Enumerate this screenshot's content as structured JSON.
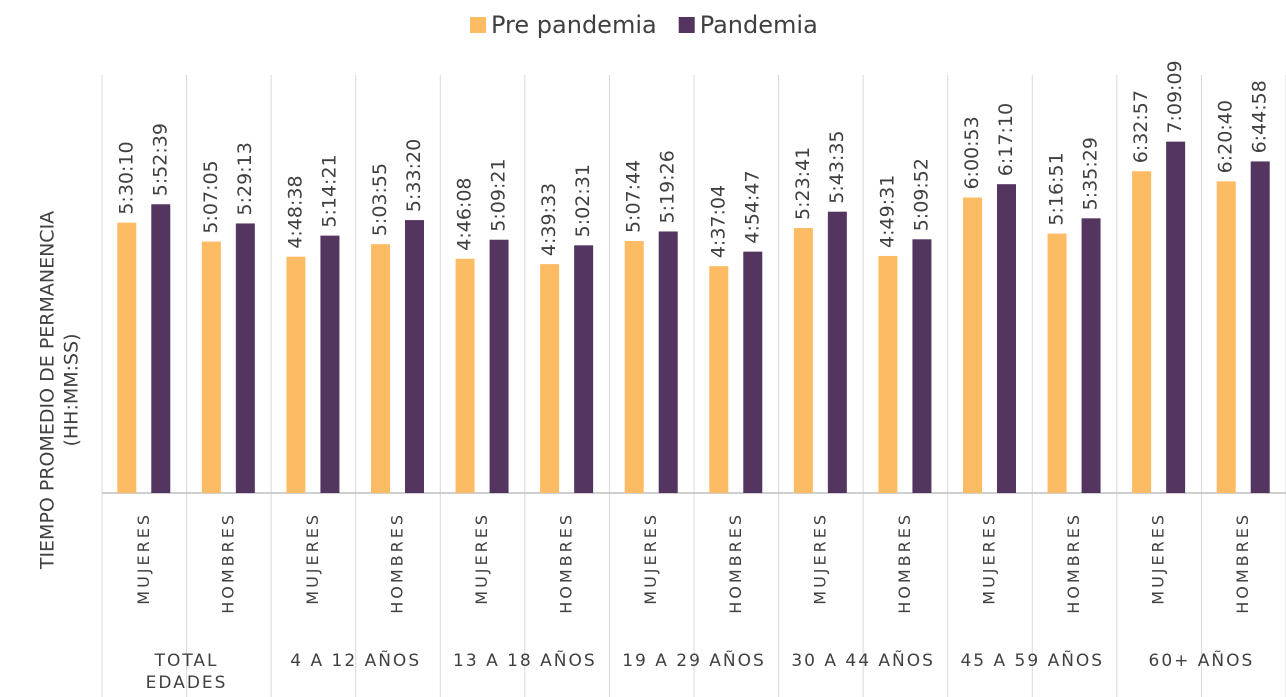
{
  "chart_data": {
    "type": "bar",
    "y_label": [
      "TIEMPO PROMEDIO DE PERMANENCIA",
      "(HH:MM:SS)"
    ],
    "categories": [
      "MUJERES",
      "HOMBRES",
      "MUJERES",
      "HOMBRES",
      "MUJERES",
      "HOMBRES",
      "MUJERES",
      "HOMBRES",
      "MUJERES",
      "HOMBRES",
      "MUJERES",
      "HOMBRES",
      "MUJERES",
      "HOMBRES"
    ],
    "groups": [
      "TOTAL EDADES",
      "4 A 12 AÑOS",
      "13 A 18 AÑOS",
      "19 A 29 AÑOS",
      "30 A 44 AÑOS",
      "45 A 59 AÑOS",
      "60+ AÑOS"
    ],
    "ylim": [
      0,
      28800
    ],
    "legend": "top",
    "series": [
      {
        "name": "Pre pandemia",
        "color": "#FDBB63",
        "values": [
          19810,
          18425,
          17318,
          18235,
          17168,
          16773,
          18464,
          16624,
          19421,
          17371,
          21653,
          19011,
          23577,
          22840
        ],
        "value_labels": [
          "5:30:10",
          "5:07:05",
          "4:48:38",
          "5:03:55",
          "4:46:08",
          "4:39:33",
          "5:07:44",
          "4:37:04",
          "5:23:41",
          "4:49:31",
          "6:00:53",
          "5:16:51",
          "6:32:57",
          "6:20:40"
        ]
      },
      {
        "name": "Pandemia",
        "color": "#533560",
        "values": [
          21159,
          19753,
          18861,
          20000,
          18561,
          18151,
          19166,
          17687,
          20615,
          18592,
          22630,
          20129,
          25749,
          24298
        ],
        "value_labels": [
          "5:52:39",
          "5:29:13",
          "5:14:21",
          "5:33:20",
          "5:09:21",
          "5:02:31",
          "5:19:26",
          "4:54:47",
          "5:43:35",
          "5:09:52",
          "6:17:10",
          "5:35:29",
          "7:09:09",
          "6:44:58"
        ]
      }
    ]
  }
}
